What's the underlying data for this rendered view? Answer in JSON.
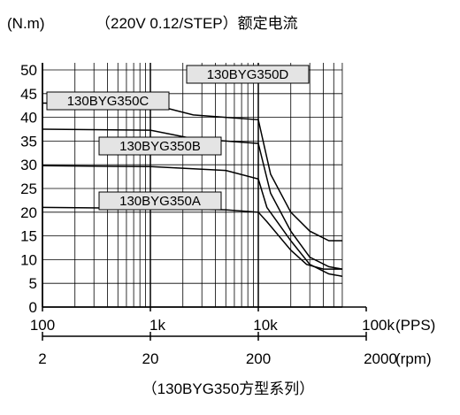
{
  "title_left": "(N.m)",
  "title_right": "（220V 0.12/STEP）额定电流",
  "caption": "（130BYG350方型系列）",
  "x_unit_top": "(PPS)",
  "x_unit_bottom": "(rpm)",
  "colors": {
    "line": "#000000",
    "label_bg": "#e4e4e4",
    "grid": "#000000"
  },
  "chart_data": {
    "type": "line",
    "title": "（220V 0.12/STEP）额定电流",
    "ylabel": "(N.m)",
    "xlabel": "(PPS)",
    "xscale": "log",
    "xlim": [
      100,
      60000
    ],
    "ylim": [
      0,
      50
    ],
    "grid": true,
    "y_ticks": [
      "0",
      "5",
      "10",
      "15",
      "20",
      "25",
      "30",
      "35",
      "40",
      "45",
      "50"
    ],
    "x_ticks_top": [
      "100",
      "1k",
      "10k",
      "100k"
    ],
    "x_ticks_bottom": [
      "2",
      "20",
      "200",
      "2000"
    ],
    "series": [
      {
        "name": "130BYG350D",
        "x": [
          100,
          1000,
          1500,
          2500,
          5000,
          10000,
          13000,
          20000,
          30000,
          45000,
          60000
        ],
        "y": [
          43,
          42.8,
          41.8,
          40.5,
          40,
          39.5,
          28,
          20,
          16,
          14,
          14
        ]
      },
      {
        "name": "130BYG350C",
        "x": [
          100,
          1000,
          2500,
          5000,
          10000,
          13000,
          20000,
          30000,
          45000,
          60000
        ],
        "y": [
          37.5,
          37.3,
          35.5,
          35,
          34.5,
          24,
          16,
          10.5,
          8.5,
          8
        ]
      },
      {
        "name": "130BYG350B",
        "x": [
          100,
          1000,
          5000,
          10000,
          12000,
          20000,
          30000,
          45000,
          60000
        ],
        "y": [
          29.8,
          29.6,
          28.8,
          27,
          21,
          14,
          9,
          7,
          6.5
        ]
      },
      {
        "name": "130BYG350A",
        "x": [
          100,
          1000,
          5000,
          10000,
          12000,
          20000,
          28000,
          40000,
          60000
        ],
        "y": [
          21,
          20.8,
          20.5,
          20,
          18,
          12,
          9,
          8,
          8
        ]
      }
    ]
  }
}
